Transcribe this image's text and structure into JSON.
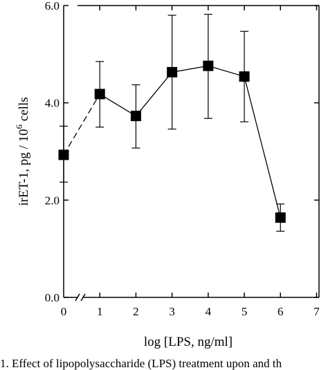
{
  "chart_data": {
    "type": "line",
    "title": "",
    "xlabel": "log [LPS, ng/ml]",
    "ylabel_main": "irET-1, pg / 10",
    "ylabel_exp": "6",
    "ylabel_tail": " cells",
    "xlim": [
      0,
      7
    ],
    "ylim": [
      0,
      6
    ],
    "x_ticks": [
      0,
      1,
      2,
      3,
      4,
      5,
      6,
      7
    ],
    "x_tick_labels": [
      "0",
      "1",
      "2",
      "3",
      "4",
      "5",
      "6",
      "7"
    ],
    "y_ticks": [
      0,
      2,
      4,
      6
    ],
    "y_tick_labels": [
      "0.0",
      "2.0",
      "4.0",
      "6.0"
    ],
    "x_axis_break": true,
    "grid": false,
    "marker": "square",
    "series": [
      {
        "x": [
          0,
          1,
          2,
          3,
          4,
          5,
          6
        ],
        "y": [
          2.93,
          4.18,
          3.73,
          4.63,
          4.76,
          4.54,
          1.64
        ],
        "err_low": [
          2.37,
          3.5,
          3.07,
          3.46,
          3.68,
          3.61,
          1.36
        ],
        "err_high": [
          3.52,
          4.85,
          4.37,
          5.8,
          5.82,
          5.47,
          1.92
        ]
      }
    ]
  },
  "caption_text": "1. Effect of lipopolysaccharide (LPS) treatment upon and th"
}
